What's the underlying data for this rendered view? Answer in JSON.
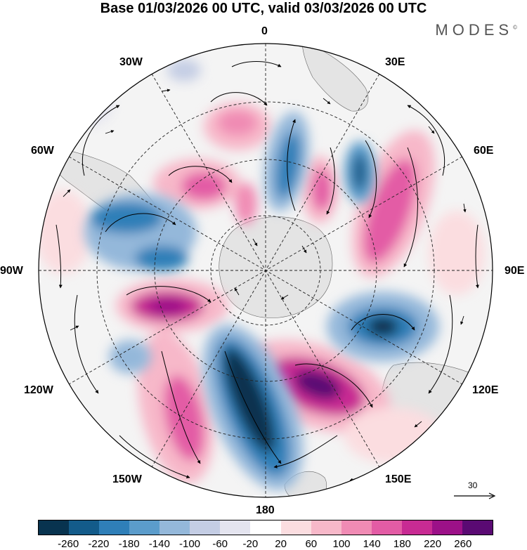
{
  "title": "Base 01/03/2026 00 UTC, valid 03/03/2026 00 UTC",
  "brand": "MODES",
  "brand_mark": "©",
  "longitude_labels": {
    "n0": "0",
    "n30e": "30E",
    "n60e": "60E",
    "n90e": "90E",
    "n120e": "120E",
    "n150e": "150E",
    "n180": "180",
    "n150w": "150W",
    "n120w": "120W",
    "n90w": "90W",
    "n60w": "60W",
    "n30w": "30W"
  },
  "reference_vector": {
    "label": "30",
    "icon": "right-arrow-icon"
  },
  "colorbar": {
    "ticks": [
      "-260",
      "-220",
      "-180",
      "-140",
      "-100",
      "-60",
      "-20",
      "20",
      "60",
      "100",
      "140",
      "180",
      "220",
      "260"
    ],
    "colors": [
      "#08334f",
      "#135b8a",
      "#2f7fb8",
      "#5b9ccb",
      "#94b8da",
      "#c4cde4",
      "#e4e4ef",
      "#ffffff",
      "#fbdde0",
      "#f7b8c9",
      "#f08bb4",
      "#e35ca5",
      "#c82b93",
      "#9c1188",
      "#5a0a73"
    ]
  },
  "map": {
    "projection": "south-polar-stereographic",
    "land_color": "#e4e4e4",
    "ocean_color": "#f4f4f4"
  }
}
